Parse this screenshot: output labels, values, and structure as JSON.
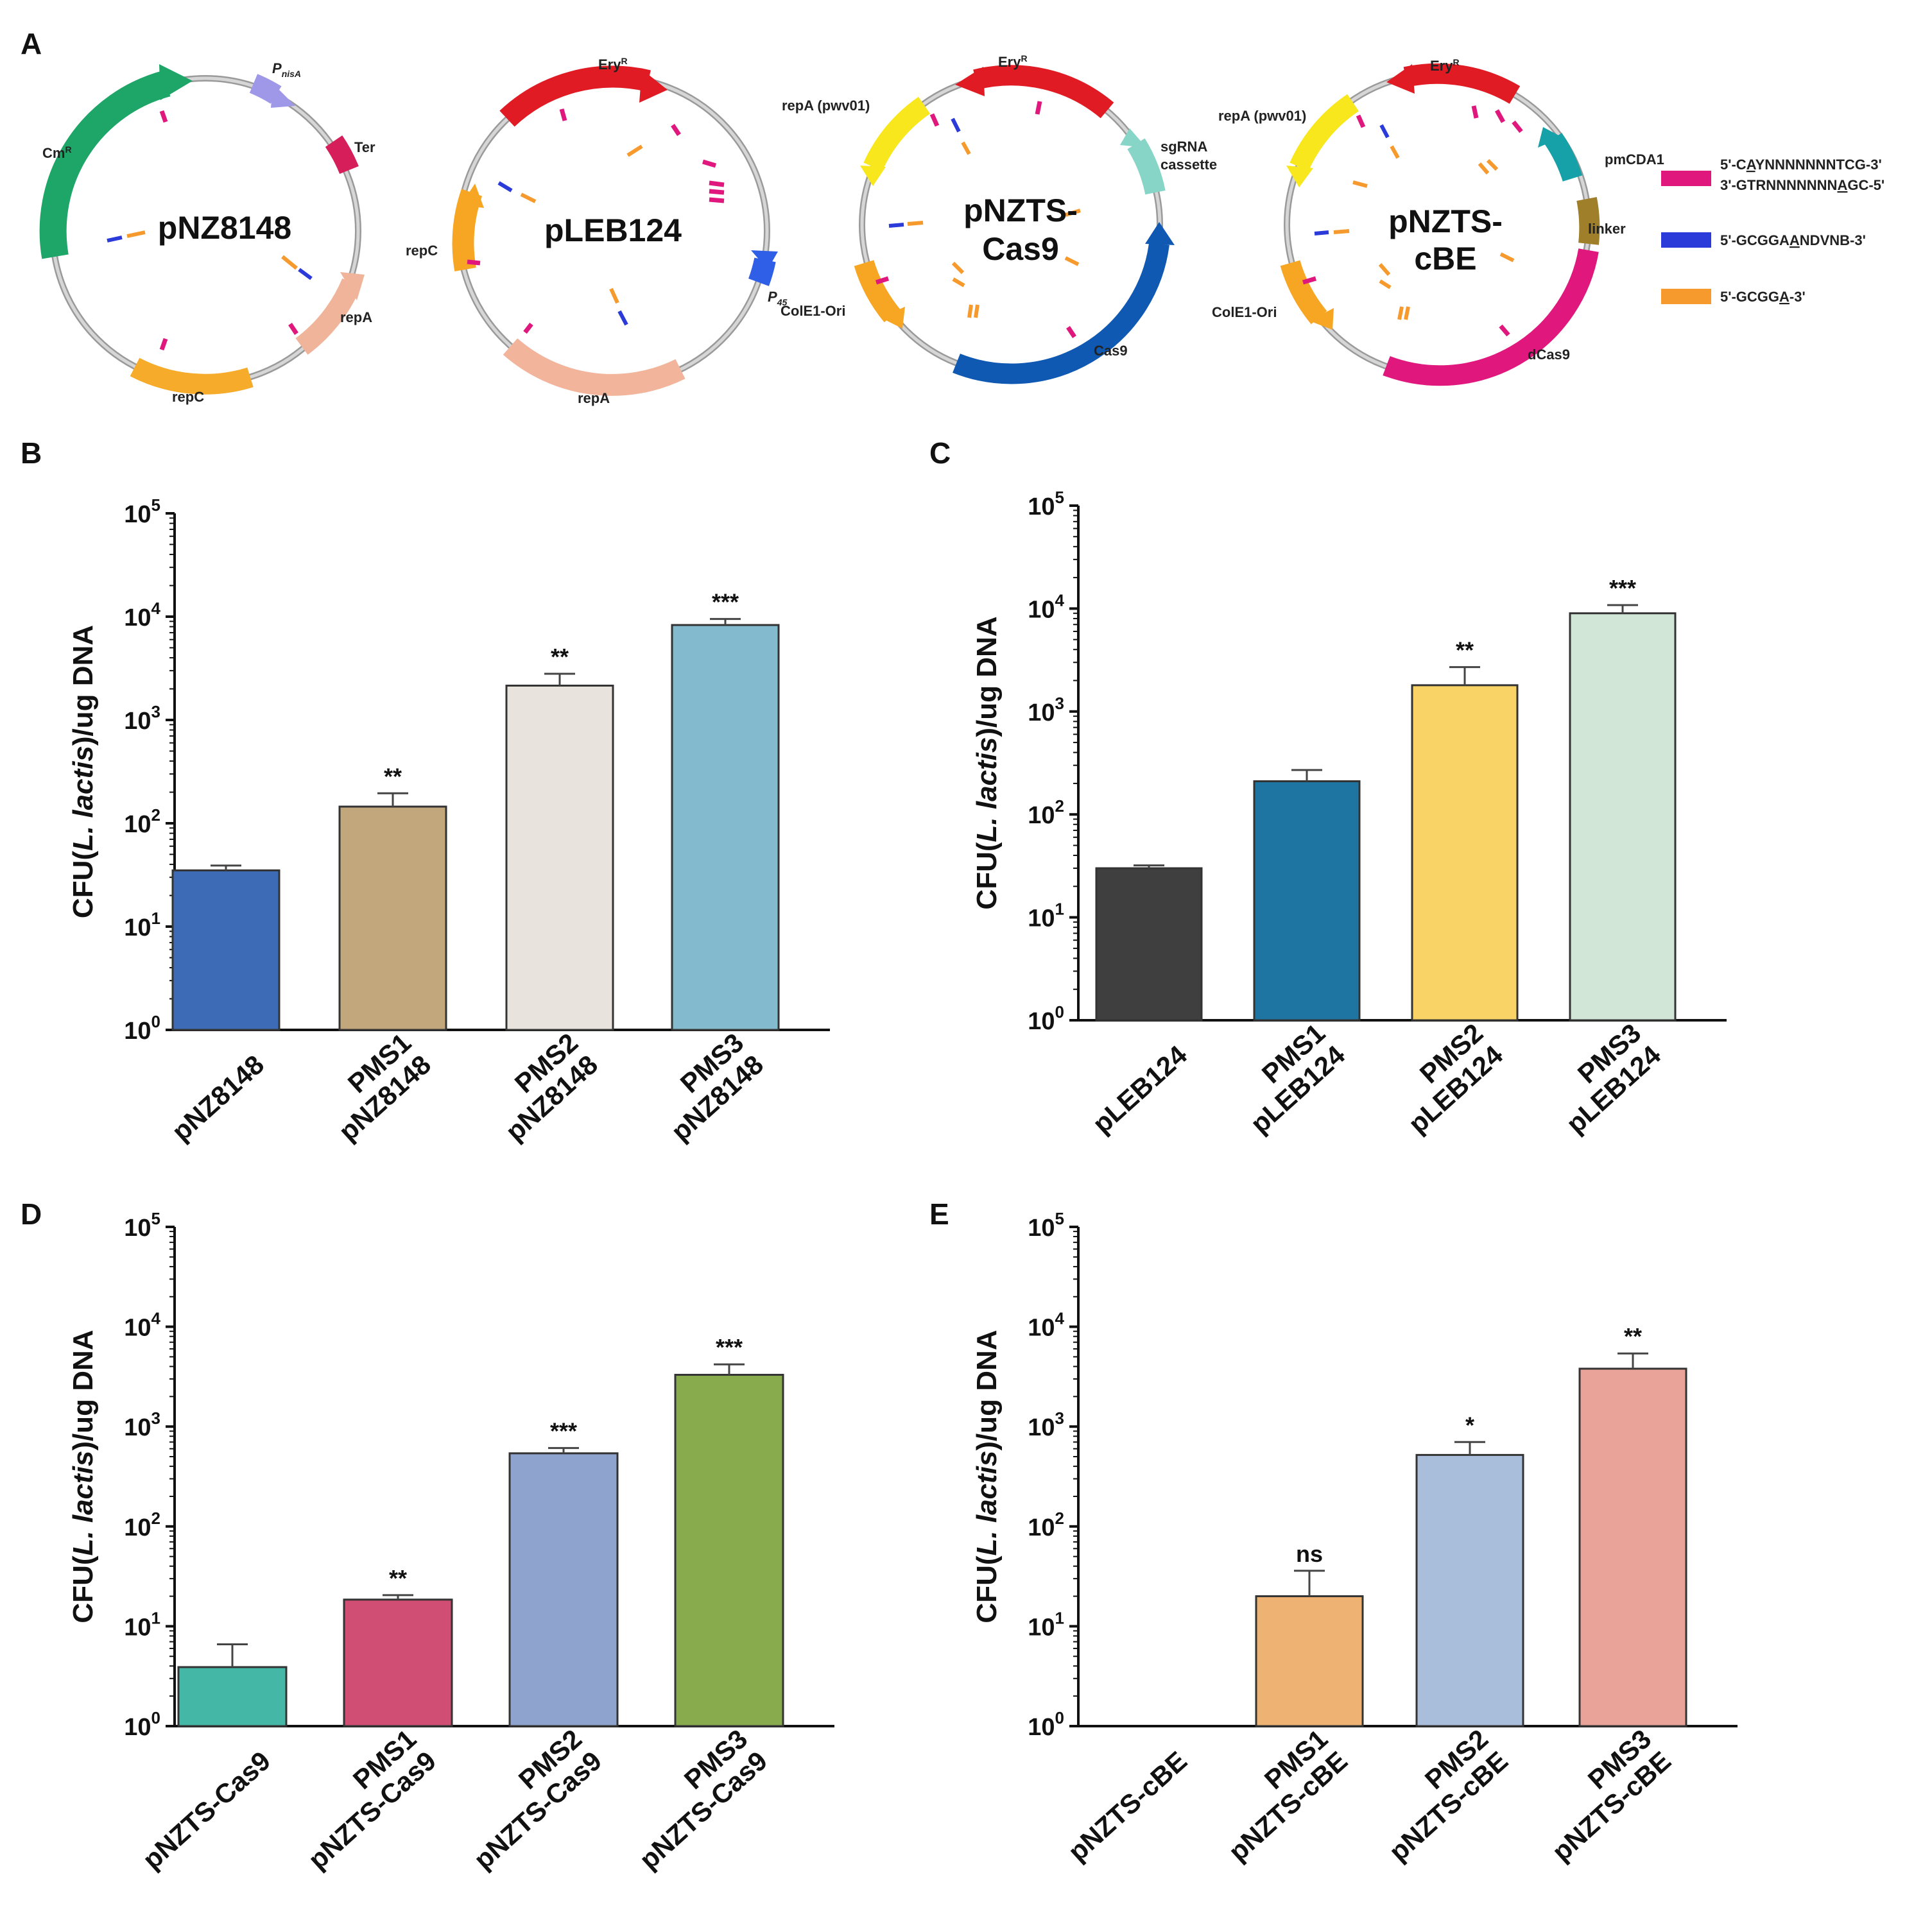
{
  "panels": {
    "A": "A",
    "B": "B",
    "C": "C",
    "D": "D",
    "E": "E"
  },
  "plasmids": [
    {
      "name": "pNZ8148",
      "name_lines": [
        "pNZ8148"
      ],
      "features": [
        {
          "label": "CmR",
          "color": "#1da667",
          "start": 198,
          "end": 338,
          "dir": 1
        },
        {
          "label": "PnisA",
          "color": "#9f97e8",
          "start": 8,
          "end": 23,
          "dir": 1
        },
        {
          "label": "Ter",
          "color": "#d61f5a",
          "start": 55,
          "end": 68,
          "dir": 0
        },
        {
          "label": "repA",
          "color": "#f0b49a",
          "start": 88,
          "end": 140,
          "dir": -1
        },
        {
          "label": "repC",
          "color": "#f6ab2a",
          "start": 164,
          "end": 212,
          "dir": 0
        }
      ]
    },
    {
      "name": "pLEB124",
      "name_lines": [
        "pLEB124"
      ],
      "features": [
        {
          "label": "EryR",
          "color": "#e01b24",
          "start": 312,
          "end": 42,
          "dir": 1
        },
        {
          "label": "P45",
          "color": "#2f5fe6",
          "start": 83,
          "end": 100,
          "dir": 1
        },
        {
          "label": "repA",
          "color": "#f2b49a",
          "start": 145,
          "end": 213,
          "dir": 0
        },
        {
          "label": "repC",
          "color": "#f6a623",
          "start": 285,
          "end": 250,
          "dir": -1
        }
      ]
    },
    {
      "name": "pNZTS-Cas9",
      "name_lines": [
        "pNZTS-",
        "Cas9"
      ],
      "features": [
        {
          "label": "EryR",
          "color": "#e01b24",
          "start": 40,
          "end": 350,
          "dir": -1
        },
        {
          "label": "sgRNA cassette",
          "color": "#87d5c7",
          "start": 52,
          "end": 80,
          "dir": -1
        },
        {
          "label": "Cas9",
          "color": "#0f59b3",
          "start": 85,
          "end": 195,
          "dir": 1
        },
        {
          "label": "ColE1-Ori",
          "color": "#f6a623",
          "start": 250,
          "end": 218,
          "dir": -1
        },
        {
          "label": "repA (pwv01)",
          "color": "#f8e71c",
          "start": 330,
          "end": 290,
          "dir": -1
        }
      ]
    },
    {
      "name": "pNZTS-cBE",
      "name_lines": [
        "pNZTS-",
        "cBE"
      ],
      "features": [
        {
          "label": "EryR",
          "color": "#e01b24",
          "start": 38,
          "end": 348,
          "dir": -1
        },
        {
          "label": "pmCDA1",
          "color": "#16a0a8",
          "start": 63,
          "end": 50,
          "dir": -1
        },
        {
          "label": "linker",
          "color": "#a07f2a",
          "start": 80,
          "end": 95,
          "dir": 0
        },
        {
          "label": "dCas9",
          "color": "#e0187e",
          "start": 95,
          "end": 205,
          "dir": 0
        },
        {
          "label": "ColE1-Ori",
          "color": "#f6a623",
          "start": 250,
          "end": 220,
          "dir": -1
        },
        {
          "label": "repA (pwv01)",
          "color": "#f8e71c",
          "start": 330,
          "end": 290,
          "dir": -1
        }
      ]
    }
  ],
  "legend": [
    {
      "color": "#e0187e",
      "lines": [
        "5'-CAYNNNNNNNTCG-3'",
        "3'-GTRNNNNNNNAGC-5'"
      ]
    },
    {
      "color": "#2b3bd9",
      "lines": [
        "5'-GCGGAANDVNB-3'"
      ]
    },
    {
      "color": "#f69a2e",
      "lines": [
        "5'-GCGGA-3'"
      ]
    }
  ],
  "chart_data": [
    {
      "panel": "B",
      "type": "bar",
      "yscale": "log",
      "ylim": [
        1,
        100000
      ],
      "ylabel": "CFU(L. lactis)/ug DNA",
      "yticks": [
        {
          "base": "10",
          "exp": "0"
        },
        {
          "base": "10",
          "exp": "1"
        },
        {
          "base": "10",
          "exp": "2"
        },
        {
          "base": "10",
          "exp": "3"
        },
        {
          "base": "10",
          "exp": "4"
        },
        {
          "base": "10",
          "exp": "5"
        }
      ],
      "categories": [
        [
          "pNZ8148"
        ],
        [
          "PMS1",
          "pNZ8148"
        ],
        [
          "PMS2",
          "pNZ8148"
        ],
        [
          "PMS3",
          "pNZ8148"
        ]
      ],
      "values": [
        35,
        145,
        2150,
        8300
      ],
      "errors": [
        39,
        195,
        2800,
        9500
      ],
      "significance": [
        "",
        "**",
        "**",
        "***"
      ],
      "colors": [
        "#3d6bb5",
        "#c2a77d",
        "#e8e3dc",
        "#84bace"
      ]
    },
    {
      "panel": "C",
      "type": "bar",
      "yscale": "log",
      "ylim": [
        1,
        100000
      ],
      "ylabel": "CFU(L. lactis)/ug DNA",
      "yticks": [
        {
          "base": "10",
          "exp": "0"
        },
        {
          "base": "10",
          "exp": "1"
        },
        {
          "base": "10",
          "exp": "2"
        },
        {
          "base": "10",
          "exp": "3"
        },
        {
          "base": "10",
          "exp": "4"
        },
        {
          "base": "10",
          "exp": "5"
        }
      ],
      "categories": [
        [
          "pLEB124"
        ],
        [
          "PMS1",
          "pLEB124"
        ],
        [
          "PMS2",
          "pLEB124"
        ],
        [
          "PMS3",
          "pLEB124"
        ]
      ],
      "values": [
        30,
        210,
        1800,
        9000
      ],
      "errors": [
        32,
        270,
        2700,
        10800
      ],
      "significance": [
        "",
        "",
        "**",
        "***"
      ],
      "colors": [
        "#3f3f3f",
        "#1f75a2",
        "#f9d365",
        "#d1e6d7"
      ]
    },
    {
      "panel": "D",
      "type": "bar",
      "yscale": "log",
      "ylim": [
        1,
        100000
      ],
      "ylabel": "CFU(L. lactis)/ug DNA",
      "yticks": [
        {
          "base": "10",
          "exp": "0"
        },
        {
          "base": "10",
          "exp": "1"
        },
        {
          "base": "10",
          "exp": "2"
        },
        {
          "base": "10",
          "exp": "3"
        },
        {
          "base": "10",
          "exp": "4"
        },
        {
          "base": "10",
          "exp": "5"
        }
      ],
      "categories": [
        [
          "pNZTS-Cas9"
        ],
        [
          "PMS1",
          "pNZTS-Cas9"
        ],
        [
          "PMS2",
          "pNZTS-Cas9"
        ],
        [
          "PMS3",
          "pNZTS-Cas9"
        ]
      ],
      "values": [
        3.9,
        18.5,
        540,
        3300
      ],
      "errors": [
        6.6,
        20.5,
        610,
        4200
      ],
      "significance": [
        "",
        "**",
        "***",
        "***"
      ],
      "colors": [
        "#45b7a7",
        "#d04e73",
        "#8ea3cd",
        "#87ab4d"
      ]
    },
    {
      "panel": "E",
      "type": "bar",
      "yscale": "log",
      "ylim": [
        1,
        100000
      ],
      "ylabel": "CFU(L. lactis)/ug DNA",
      "yticks": [
        {
          "base": "10",
          "exp": "0"
        },
        {
          "base": "10",
          "exp": "1"
        },
        {
          "base": "10",
          "exp": "2"
        },
        {
          "base": "10",
          "exp": "3"
        },
        {
          "base": "10",
          "exp": "4"
        },
        {
          "base": "10",
          "exp": "5"
        }
      ],
      "categories": [
        [
          "pNZTS-cBE"
        ],
        [
          "PMS1",
          "pNZTS-cBE"
        ],
        [
          "PMS2",
          "pNZTS-cBE"
        ],
        [
          "PMS3",
          "pNZTS-cBE"
        ]
      ],
      "values": [
        null,
        20,
        520,
        3800
      ],
      "errors": [
        null,
        36,
        700,
        5400
      ],
      "significance": [
        "",
        "ns",
        "*",
        "**"
      ],
      "colors": [
        "#eeb372",
        "#eeb372",
        "#a8bedb",
        "#e9a398"
      ]
    }
  ]
}
